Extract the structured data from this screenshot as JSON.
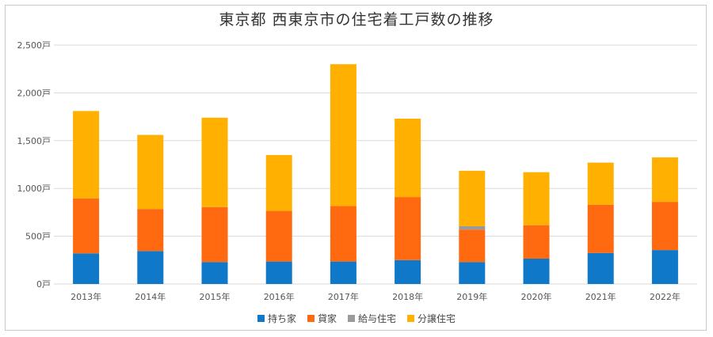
{
  "chart_data": {
    "type": "bar",
    "stacked": true,
    "title": "東京都 西東京市の住宅着工戸数の推移",
    "categories": [
      "2013年",
      "2014年",
      "2015年",
      "2016年",
      "2017年",
      "2018年",
      "2019年",
      "2020年",
      "2021年",
      "2022年"
    ],
    "yticks": [
      "0戸",
      "500戸",
      "1,000戸",
      "1,500戸",
      "2,000戸",
      "2,500戸"
    ],
    "ylim": [
      0,
      2500
    ],
    "grid": true,
    "legend_position": "bottom",
    "series": [
      {
        "name": "持ち家",
        "color": "#0f78c8",
        "values": [
          320,
          345,
          230,
          235,
          235,
          250,
          230,
          265,
          325,
          355
        ]
      },
      {
        "name": "貸家",
        "color": "#ff6a10",
        "values": [
          575,
          440,
          575,
          530,
          580,
          660,
          340,
          350,
          505,
          505
        ]
      },
      {
        "name": "給与住宅",
        "color": "#9a9a9a",
        "values": [
          0,
          0,
          0,
          0,
          0,
          0,
          35,
          0,
          0,
          0
        ]
      },
      {
        "name": "分譲住宅",
        "color": "#ffb000",
        "values": [
          915,
          775,
          935,
          585,
          1485,
          820,
          580,
          555,
          440,
          465
        ]
      }
    ]
  }
}
